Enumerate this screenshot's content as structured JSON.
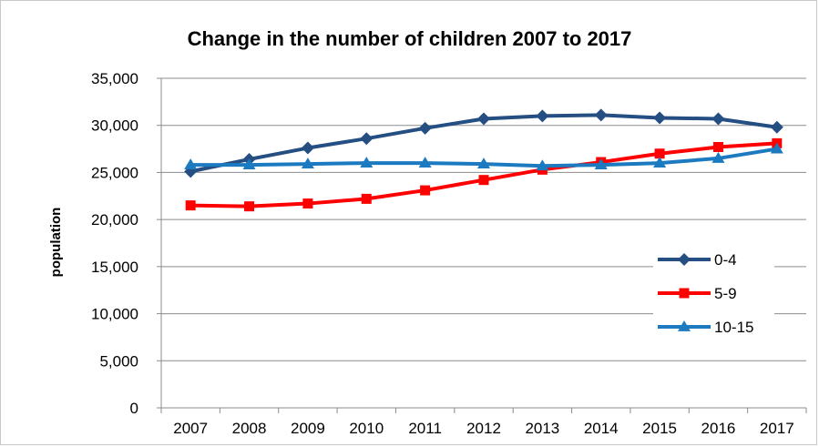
{
  "chart_data": {
    "type": "line",
    "title": "Change in the number of children 2007 to 2017",
    "xlabel": "",
    "ylabel": "population",
    "categories": [
      "2007",
      "2008",
      "2009",
      "2010",
      "2011",
      "2012",
      "2013",
      "2014",
      "2015",
      "2016",
      "2017"
    ],
    "ylim": [
      0,
      35000
    ],
    "yticks": [
      0,
      5000,
      10000,
      15000,
      20000,
      25000,
      30000,
      35000
    ],
    "ytick_labels": [
      "0",
      "5,000",
      "10,000",
      "15,000",
      "20,000",
      "25,000",
      "30,000",
      "35,000"
    ],
    "grid": "horizontal",
    "legend_position": "right",
    "series": [
      {
        "name": "0-4",
        "color": "#254e82",
        "marker": "diamond",
        "values": [
          25100,
          26400,
          27600,
          28600,
          29700,
          30700,
          31000,
          31100,
          30800,
          30700,
          29800
        ]
      },
      {
        "name": "5-9",
        "color": "#ff0000",
        "marker": "square",
        "values": [
          21500,
          21400,
          21700,
          22200,
          23100,
          24200,
          25300,
          26100,
          27000,
          27700,
          28100
        ]
      },
      {
        "name": "10-15",
        "color": "#1b7ac0",
        "marker": "triangle",
        "values": [
          25800,
          25800,
          25900,
          26000,
          26000,
          25900,
          25700,
          25800,
          26000,
          26500,
          27500
        ]
      }
    ]
  }
}
